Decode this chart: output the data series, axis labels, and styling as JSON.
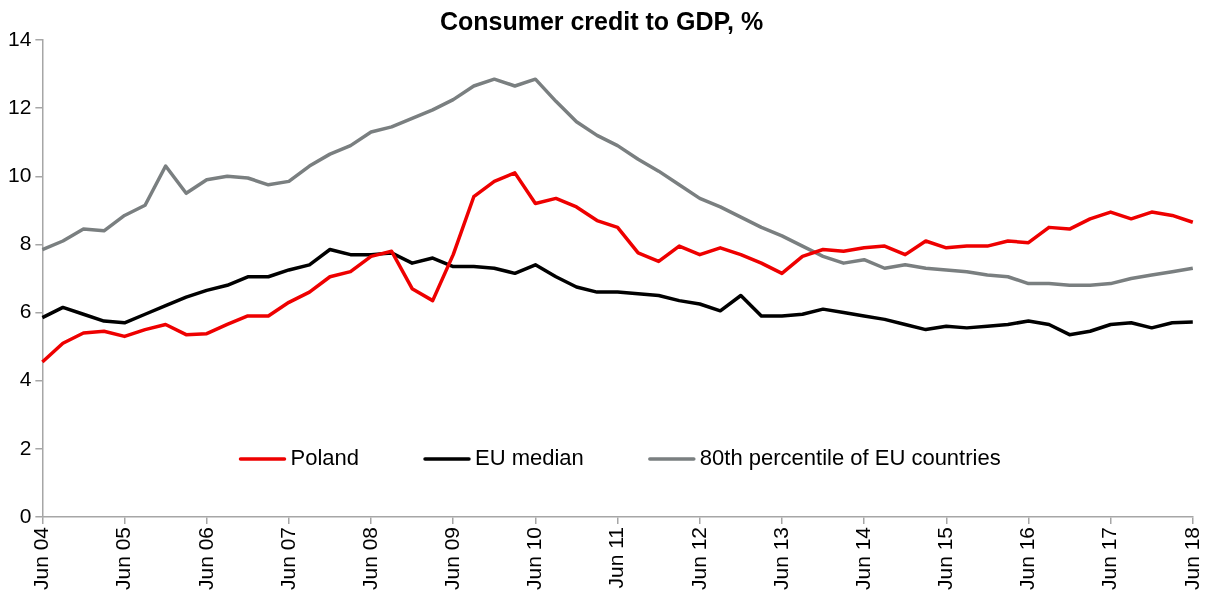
{
  "chart_data": {
    "type": "line",
    "title": "Consumer credit to GDP, %",
    "categories": [
      "Jun 04",
      null,
      null,
      null,
      "Jun 05",
      null,
      null,
      null,
      "Jun 06",
      null,
      null,
      null,
      "Jun 07",
      null,
      null,
      null,
      "Jun 08",
      null,
      null,
      null,
      "Jun 09",
      null,
      null,
      null,
      "Jun 10",
      null,
      null,
      null,
      "Jun 11",
      null,
      null,
      null,
      "Jun 12",
      null,
      null,
      null,
      "Jun 13",
      null,
      null,
      null,
      "Jun 14",
      null,
      null,
      null,
      "Jun 15",
      null,
      null,
      null,
      "Jun 16",
      null,
      null,
      null,
      "Jun 17",
      null,
      null,
      null,
      "Jun 18"
    ],
    "series": [
      {
        "name": "Poland",
        "color": "#ee0000",
        "values": [
          4.55,
          5.1,
          5.4,
          5.45,
          5.3,
          5.5,
          5.65,
          5.35,
          5.38,
          5.65,
          5.9,
          5.9,
          6.3,
          6.6,
          7.05,
          7.2,
          7.65,
          7.8,
          6.7,
          6.35,
          7.7,
          9.4,
          9.85,
          10.1,
          9.2,
          9.35,
          9.1,
          8.7,
          8.5,
          7.75,
          7.5,
          7.95,
          7.7,
          7.9,
          7.7,
          7.45,
          7.15,
          7.65,
          7.85,
          7.8,
          7.9,
          7.95,
          7.7,
          8.1,
          7.9,
          7.95,
          7.95,
          8.1,
          8.05,
          8.5,
          8.45,
          8.75,
          8.95,
          8.75,
          8.95,
          8.85,
          8.65
        ]
      },
      {
        "name": "EU median",
        "color": "#000000",
        "values": [
          5.85,
          6.15,
          5.95,
          5.75,
          5.7,
          5.95,
          6.2,
          6.45,
          6.65,
          6.8,
          7.05,
          7.05,
          7.25,
          7.4,
          7.85,
          7.7,
          7.7,
          7.75,
          7.45,
          7.6,
          7.35,
          7.35,
          7.3,
          7.15,
          7.4,
          7.05,
          6.75,
          6.6,
          6.6,
          6.55,
          6.5,
          6.35,
          6.25,
          6.05,
          6.5,
          5.9,
          5.9,
          5.95,
          6.1,
          6.0,
          5.9,
          5.8,
          5.65,
          5.5,
          5.6,
          5.55,
          5.6,
          5.65,
          5.75,
          5.65,
          5.35,
          5.45,
          5.65,
          5.7,
          5.55,
          5.7,
          5.72
        ]
      },
      {
        "name": "80th percentile of EU countries",
        "color": "#7a7f80",
        "values": [
          7.85,
          8.1,
          8.45,
          8.4,
          8.85,
          9.15,
          10.3,
          9.5,
          9.9,
          10.0,
          9.95,
          9.75,
          9.85,
          10.3,
          10.65,
          10.9,
          11.3,
          11.45,
          11.7,
          11.95,
          12.25,
          12.65,
          12.85,
          12.65,
          12.85,
          12.2,
          11.6,
          11.2,
          10.9,
          10.5,
          10.15,
          9.75,
          9.35,
          9.1,
          8.8,
          8.5,
          8.25,
          7.95,
          7.65,
          7.45,
          7.55,
          7.3,
          7.4,
          7.3,
          7.25,
          7.2,
          7.1,
          7.05,
          6.85,
          6.85,
          6.8,
          6.8,
          6.85,
          7.0,
          7.1,
          7.2,
          7.3
        ]
      }
    ],
    "ylim": [
      0,
      14
    ],
    "yticks": [
      0,
      2,
      4,
      6,
      8,
      10,
      12,
      14
    ],
    "grid": false,
    "legend": "bottom",
    "marker": "none",
    "line_style": "solid"
  }
}
